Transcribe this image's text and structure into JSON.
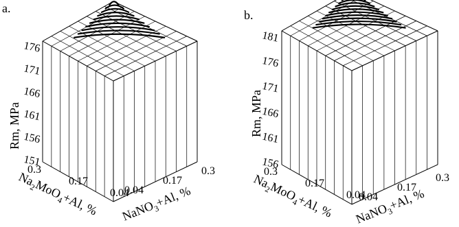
{
  "chart_data": [
    {
      "type": "surface-3d",
      "panel_label": "a.",
      "zlabel": "Rm, MPa",
      "xlabel_parts": [
        "Na",
        "2",
        "MoO",
        "4",
        "+Al, %"
      ],
      "ylabel_parts": [
        "NaNO",
        "3",
        "+Al, %"
      ],
      "x_ticks": [
        "0.3",
        "0.17",
        "0.04"
      ],
      "y_ticks": [
        "0.04",
        "0.17",
        "0.3"
      ],
      "z_ticks": [
        "176",
        "171",
        "166",
        "161",
        "156",
        "151"
      ],
      "zlim": [
        151,
        176
      ],
      "contour_count": 10
    },
    {
      "type": "surface-3d",
      "panel_label": "b.",
      "zlabel": "Rm, MPa",
      "xlabel_parts": [
        "Na",
        "2",
        "MoO",
        "4",
        "+Al, %"
      ],
      "ylabel_parts": [
        "NaNO",
        "3",
        "+Al, %"
      ],
      "x_ticks": [
        "0.3",
        "0.17",
        "0.04"
      ],
      "y_ticks": [
        "0.04",
        "0.17",
        "0.3"
      ],
      "z_ticks": [
        "181",
        "176",
        "171",
        "166",
        "161",
        "156"
      ],
      "zlim": [
        156,
        181
      ],
      "contour_count": 12
    }
  ]
}
